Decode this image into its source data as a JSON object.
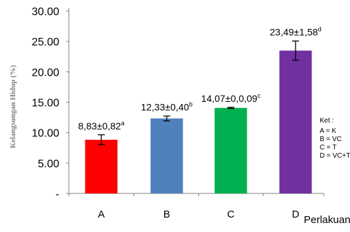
{
  "chart_data": {
    "type": "bar",
    "title": "",
    "xlabel": "Perlakuan",
    "ylabel": "Kelangsungan Hidup (%)",
    "ylim": [
      0,
      30
    ],
    "yticks": [
      "-",
      "5.00",
      "10.00",
      "15.00",
      "20.00",
      "25.00",
      "30.00"
    ],
    "ytick_values": [
      0,
      5,
      10,
      15,
      20,
      25,
      30
    ],
    "categories": [
      "A",
      "B",
      "C",
      "D"
    ],
    "values": [
      8.83,
      12.33,
      14.07,
      23.49
    ],
    "errors": [
      0.82,
      0.4,
      0.09,
      1.58
    ],
    "colors": [
      "#FF0000",
      "#4F81BD",
      "#00B050",
      "#7030A0"
    ],
    "data_labels": [
      "8,83±0,82",
      "12,33±0,40",
      "14,07±0,0,09",
      "23,49±1,58"
    ],
    "superscripts": [
      "a",
      "b",
      "c",
      "d"
    ],
    "grid": false,
    "legend": {
      "placement": "right",
      "title": "Ket :",
      "entries": [
        "A = K",
        "B = VC",
        "C = T",
        "D = VC+T"
      ]
    }
  }
}
